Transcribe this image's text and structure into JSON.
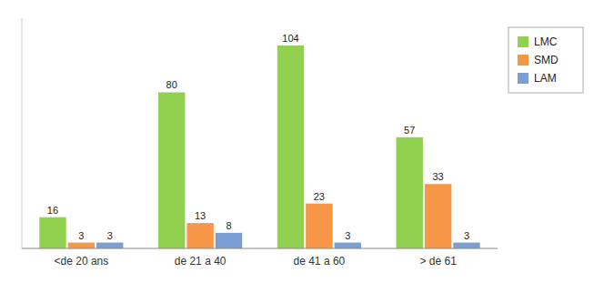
{
  "chart_data": {
    "type": "bar",
    "categories": [
      "<de 20 ans",
      "de 21 a 40",
      "de 41 a 60",
      "> de 61"
    ],
    "series": [
      {
        "name": "LMC",
        "color": "#92D050",
        "values": [
          16,
          80,
          104,
          57
        ]
      },
      {
        "name": "SMD",
        "color": "#F79646",
        "values": [
          3,
          13,
          23,
          33
        ]
      },
      {
        "name": "LAM",
        "color": "#7B9FD4",
        "values": [
          3,
          8,
          3,
          3
        ]
      }
    ],
    "ylim": [
      0,
      118
    ],
    "grid": false,
    "legend": "upper right",
    "data_labels": true,
    "tick_labels": "x"
  }
}
